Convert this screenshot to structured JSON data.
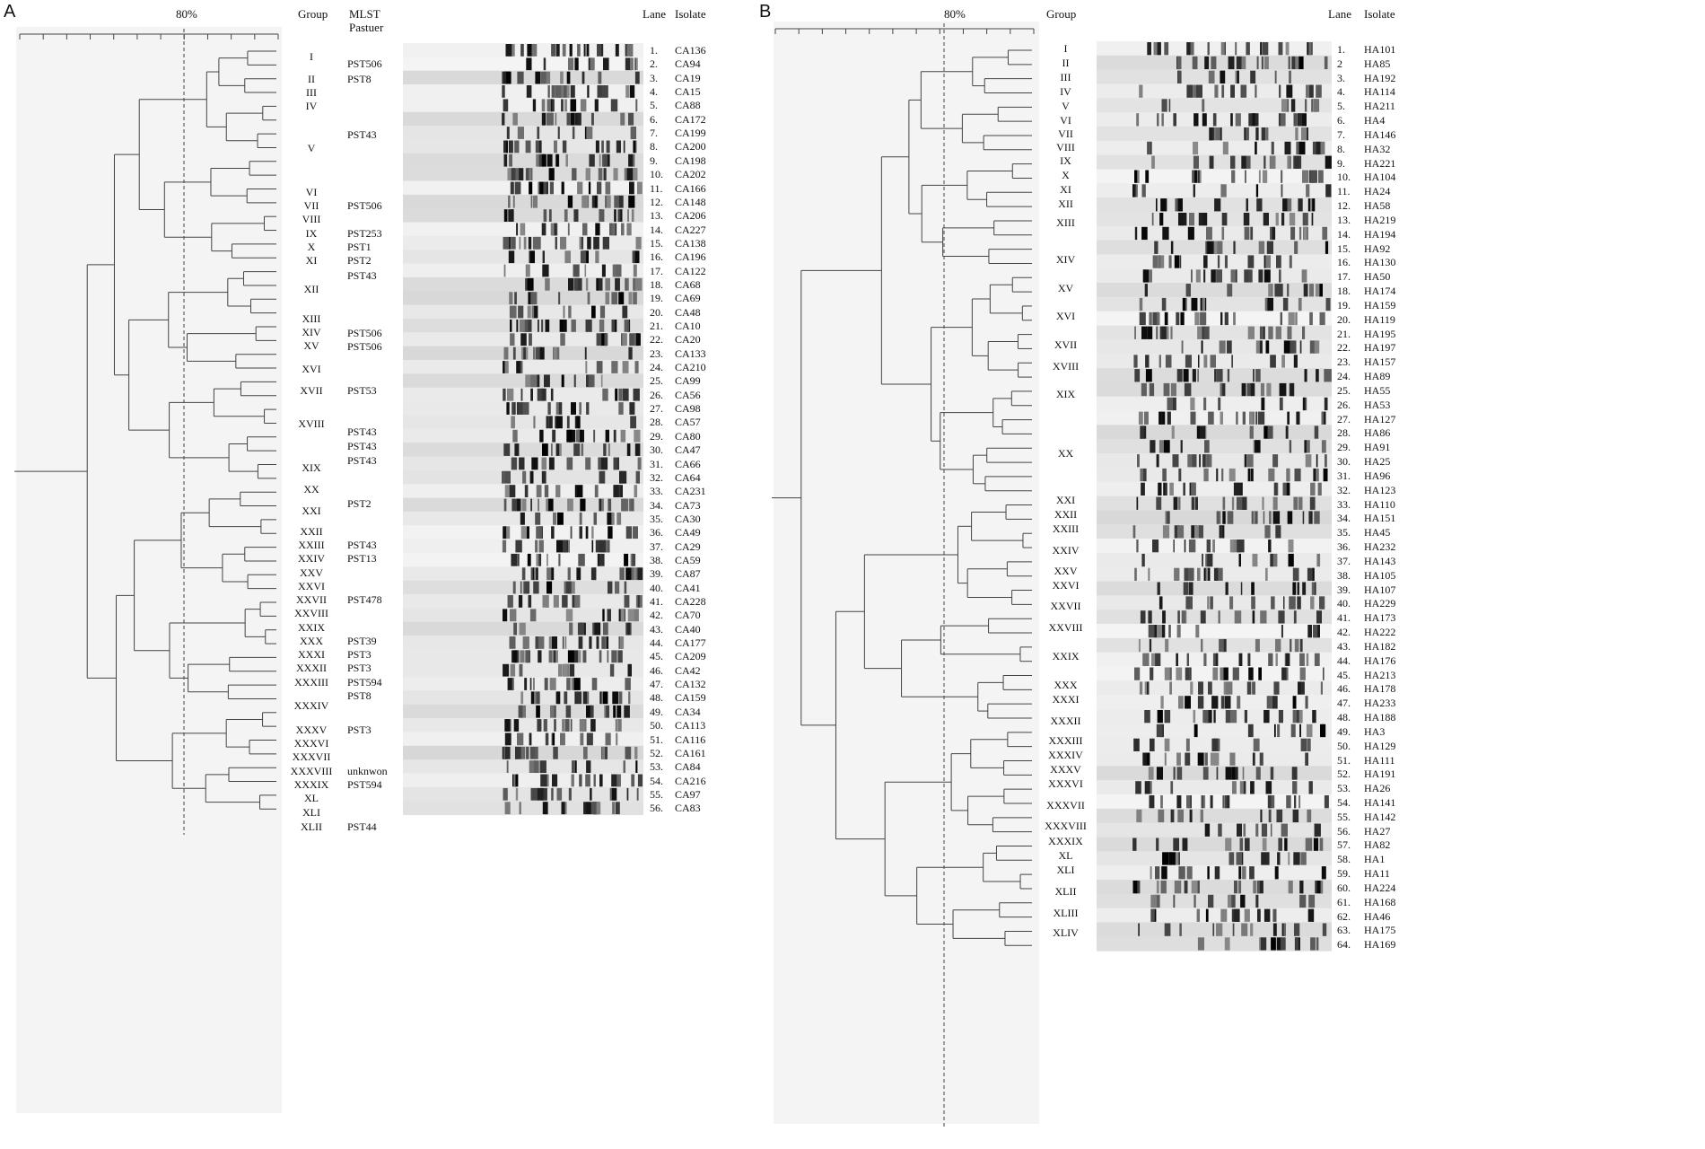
{
  "panel_a": {
    "label": "A",
    "threshold_label": "80%",
    "headers": {
      "group": "Group",
      "mlst_line1": "MLST",
      "mlst_line2": "Pastuer",
      "lane": "Lane",
      "isolate": "Isolate"
    },
    "groups": [
      "I",
      "II",
      "III",
      "IV",
      "V",
      "VI",
      "VII",
      "VIII",
      "IX",
      "X",
      "XI",
      "XII",
      "XIII",
      "XIV",
      "XV",
      "XVI",
      "XVII",
      "XVIII",
      "XIX",
      "XX",
      "XXI",
      "XXII",
      "XXIII",
      "XXIV",
      "XXV",
      "XXVI",
      "XXVII",
      "XXVIII",
      "XXIX",
      "XXX",
      "XXXI",
      "XXXII",
      "XXXIII",
      "XXXIV",
      "XXXV",
      "XXXVI",
      "XXXVII",
      "XXXVIII",
      "XXXIX",
      "XL",
      "XLI",
      "XLII"
    ],
    "mlst": [
      "PST506",
      "PST8",
      "PST43",
      "PST506",
      "PST253",
      "PST1",
      "PST2",
      "PST43",
      "PST506",
      "PST506",
      "PST53",
      "PST43",
      "PST43",
      "PST43",
      "PST2",
      "PST43",
      "PST13",
      "PST478",
      "PST39",
      "PST3",
      "PST3",
      "PST594",
      "PST8",
      "PST3",
      "unknwon",
      "PST594",
      "PST44"
    ],
    "lanes": [
      "1.",
      "2.",
      "3.",
      "4.",
      "5.",
      "6.",
      "7.",
      "8.",
      "9.",
      "10.",
      "11.",
      "12.",
      "13.",
      "14.",
      "15.",
      "16.",
      "17.",
      "18.",
      "19.",
      "20.",
      "21.",
      "22.",
      "23.",
      "24.",
      "25.",
      "26.",
      "27.",
      "28.",
      "29.",
      "30.",
      "31.",
      "32.",
      "33.",
      "34.",
      "35.",
      "36.",
      "37.",
      "38.",
      "39.",
      "40.",
      "41.",
      "42.",
      "43.",
      "44.",
      "45.",
      "46.",
      "47.",
      "48.",
      "49.",
      "50.",
      "51.",
      "52.",
      "53.",
      "54.",
      "55.",
      "56."
    ],
    "isolates": [
      "CA136",
      "CA94",
      "CA19",
      "CA15",
      "CA88",
      "CA172",
      "CA199",
      "CA200",
      "CA198",
      "CA202",
      "CA166",
      "CA148",
      "CA206",
      "CA227",
      "CA138",
      "CA196",
      "CA122",
      "CA68",
      "CA69",
      "CA48",
      "CA10",
      "CA20",
      "CA133",
      "CA210",
      "CA99",
      "CA56",
      "CA98",
      "CA57",
      "CA80",
      "CA47",
      "CA66",
      "CA64",
      "CA231",
      "CA73",
      "CA30",
      "CA49",
      "CA29",
      "CA59",
      "CA87",
      "CA41",
      "CA228",
      "CA70",
      "CA40",
      "CA177",
      "CA209",
      "CA42",
      "CA132",
      "CA159",
      "CA34",
      "CA113",
      "CA116",
      "CA161",
      "CA84",
      "CA216",
      "CA97",
      "CA83"
    ]
  },
  "panel_b": {
    "label": "B",
    "threshold_label": "80%",
    "headers": {
      "group": "Group",
      "lane": "Lane",
      "isolate": "Isolate"
    },
    "groups": [
      "I",
      "II",
      "III",
      "IV",
      "V",
      "VI",
      "VII",
      "VIII",
      "IX",
      "X",
      "XI",
      "XII",
      "XIII",
      "XIV",
      "XV",
      "XVI",
      "XVII",
      "XVIII",
      "XIX",
      "XX",
      "XXI",
      "XXII",
      "XXIII",
      "XXIV",
      "XXV",
      "XXVI",
      "XXVII",
      "XXVIII",
      "XXIX",
      "XXX",
      "XXXI",
      "XXXII",
      "XXXIII",
      "XXXIV",
      "XXXV",
      "XXXVI",
      "XXXVII",
      "XXXVIII",
      "XXXIX",
      "XL",
      "XLI",
      "XLII",
      "XLIII",
      "XLIV"
    ],
    "lanes": [
      "1.",
      "2",
      "3.",
      "4.",
      "5.",
      "6.",
      "7.",
      "8.",
      "9.",
      "10.",
      "11.",
      "12.",
      "13.",
      "14.",
      "15.",
      "16.",
      "17.",
      "18.",
      "19.",
      "20.",
      "21.",
      "22.",
      "23.",
      "24.",
      "25.",
      "26.",
      "27.",
      "28.",
      "29.",
      "30.",
      "31.",
      "32.",
      "33.",
      "34.",
      "35.",
      "36.",
      "37.",
      "38.",
      "39.",
      "40.",
      "41.",
      "42.",
      "43.",
      "44.",
      "45.",
      "46.",
      "47.",
      "48.",
      "49.",
      "50.",
      "51.",
      "52.",
      "53.",
      "54.",
      "55.",
      "56.",
      "57.",
      "58.",
      "59.",
      "60.",
      "61.",
      "62.",
      "63.",
      "64."
    ],
    "isolates": [
      "HA101",
      "HA85",
      "HA192",
      "HA114",
      "HA211",
      "HA4",
      "HA146",
      "HA32",
      "HA221",
      "HA104",
      "HA24",
      "HA58",
      "HA219",
      "HA194",
      "HA92",
      "HA130",
      "HA50",
      "HA174",
      "HA159",
      "HA119",
      "HA195",
      "HA197",
      "HA157",
      "HA89",
      "HA55",
      "HA53",
      "HA127",
      "HA86",
      "HA91",
      "HA25",
      "HA96",
      "HA123",
      "HA110",
      "HA151",
      "HA45",
      "HA232",
      "HA143",
      "HA105",
      "HA107",
      "HA229",
      "HA173",
      "HA222",
      "HA182",
      "HA176",
      "HA213",
      "HA178",
      "HA233",
      "HA188",
      "HA3",
      "HA129",
      "HA111",
      "HA191",
      "HA26",
      "HA141",
      "HA142",
      "HA27",
      "HA82",
      "HA1",
      "HA11",
      "HA224",
      "HA168",
      "HA46",
      "HA175",
      "HA169"
    ]
  }
}
